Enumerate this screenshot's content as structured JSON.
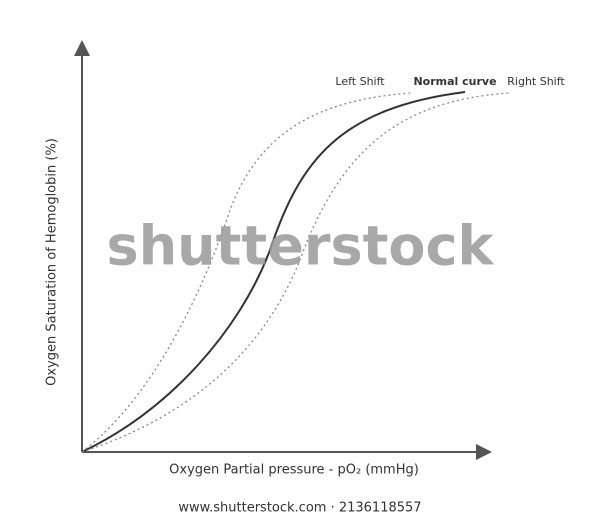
{
  "labels": {
    "left_shift": "Left Shift",
    "normal_curve": "Normal curve",
    "right_shift": "Right Shift"
  },
  "axes": {
    "y_label": "Oxygen Saturation of Hemoglobin (%)",
    "x_label": "Oxygen Partial pressure - pO₂ (mmHg)"
  },
  "watermark": {
    "logo": "shutterstock",
    "footer": "www.shutterstock.com · 2136118557"
  }
}
